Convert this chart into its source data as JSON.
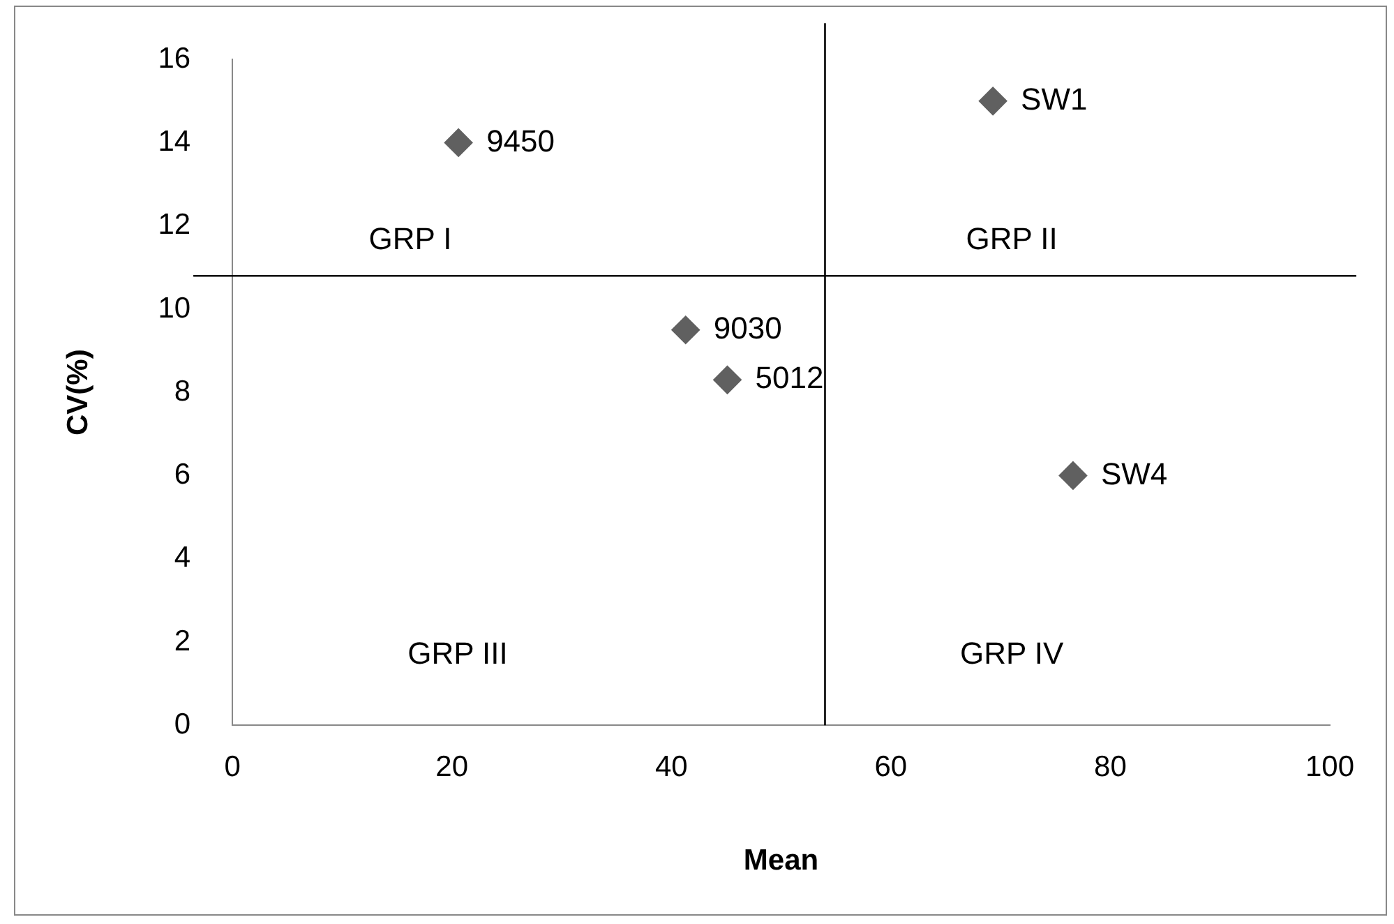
{
  "chart_data": {
    "type": "scatter",
    "xlabel": "Mean",
    "ylabel": "CV(%)",
    "xlim": [
      0,
      100
    ],
    "xticks": [
      0,
      20,
      40,
      60,
      80,
      100
    ],
    "ylim": [
      0,
      16
    ],
    "yticks": [
      0,
      2,
      4,
      6,
      8,
      10,
      12,
      14,
      16
    ],
    "grid": false,
    "legend": false,
    "marker": "diamond",
    "series": [
      {
        "name": "9450",
        "color": "#606060",
        "x": [
          20.6
        ],
        "values": [
          14
        ]
      },
      {
        "name": "SW1",
        "color": "#606060",
        "x": [
          69.3
        ],
        "values": [
          15
        ]
      },
      {
        "name": "9030",
        "color": "#606060",
        "x": [
          41.3
        ],
        "values": [
          9.5
        ]
      },
      {
        "name": "5012",
        "color": "#606060",
        "x": [
          45.1
        ],
        "values": [
          8.3
        ]
      },
      {
        "name": "SW4",
        "color": "#606060",
        "x": [
          76.6
        ],
        "values": [
          6
        ]
      }
    ],
    "ref_lines": [
      {
        "axis": "x",
        "value": 54,
        "color": "#000000",
        "line_style": "solid"
      },
      {
        "axis": "y",
        "value": 10.8,
        "color": "#000000",
        "line_style": "solid"
      }
    ],
    "annotations": [
      "GRP I",
      "GRP II",
      "GRP III",
      "GRP IV"
    ]
  }
}
